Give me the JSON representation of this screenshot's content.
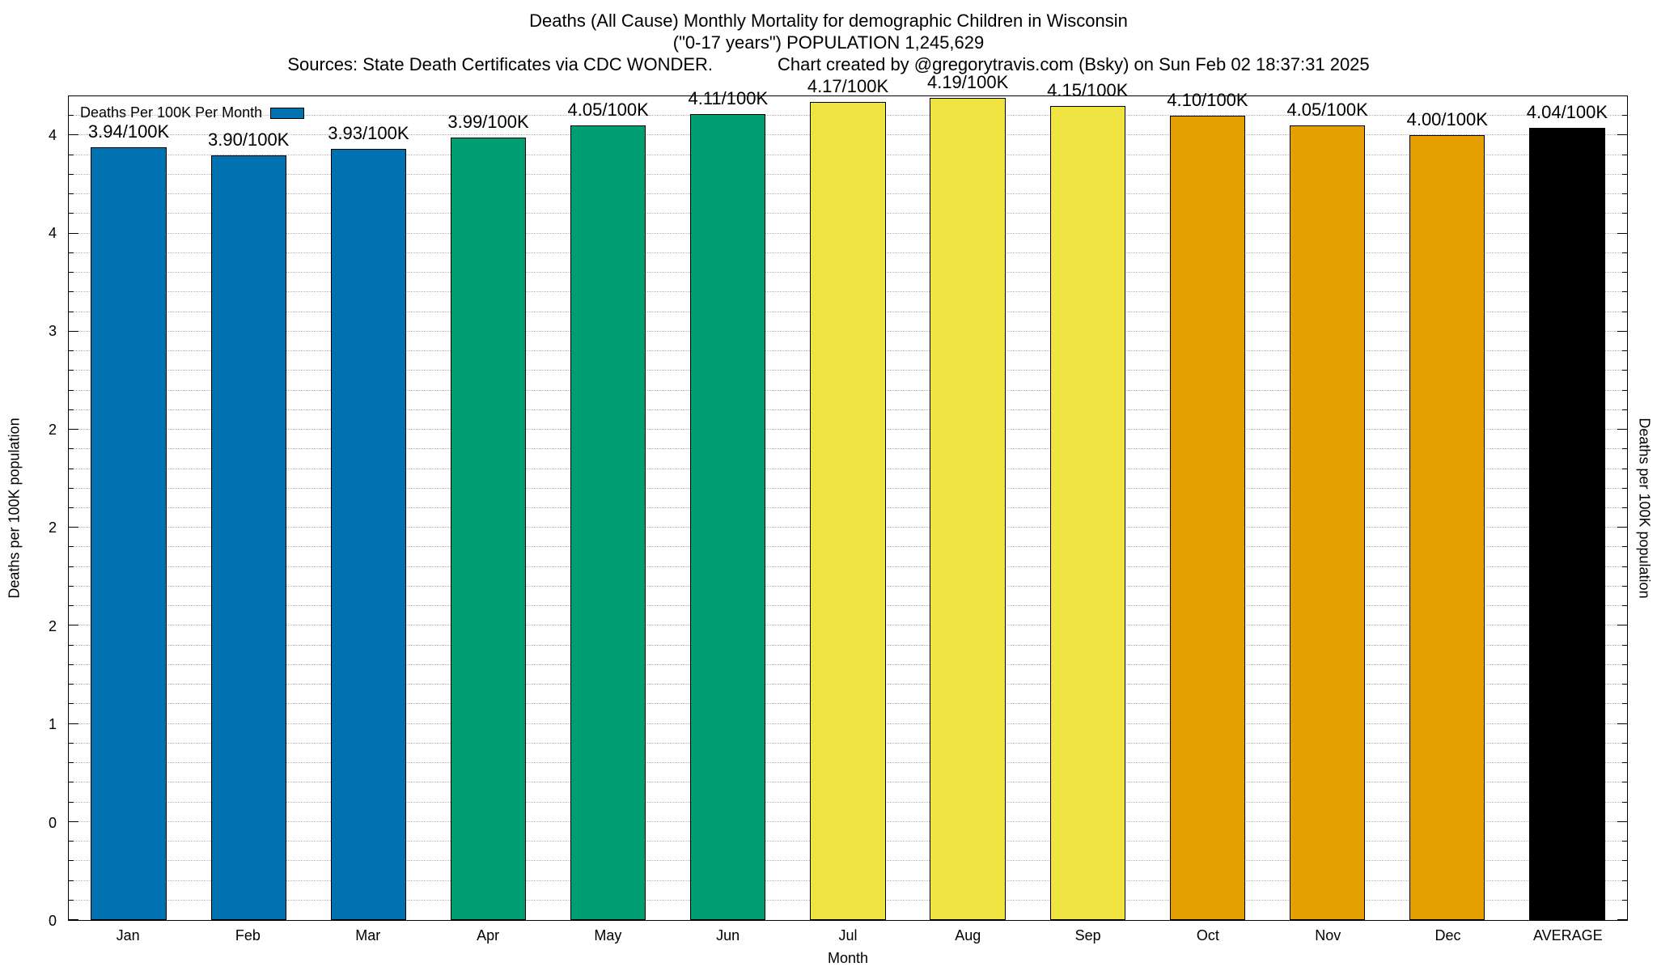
{
  "title": {
    "line1": "Deaths (All Cause) Monthly Mortality for demographic Children in Wisconsin",
    "line2": "(\"0-17 years\") POPULATION 1,245,629",
    "line3_left": "Sources: State Death Certificates via CDC WONDER.",
    "line3_right": "Chart created by @gregorytravis.com (Bsky) on Sun Feb 02 18:37:31 2025"
  },
  "legend": {
    "label": "Deaths Per 100K Per Month",
    "swatch_color": "#0072B2"
  },
  "axes": {
    "xlabel": "Month",
    "ylabel_left": "Deaths per 100K population",
    "ylabel_right": "Deaths per 100K population"
  },
  "chart_data": {
    "type": "bar",
    "title": "Deaths (All Cause) Monthly Mortality for demographic Children in Wisconsin (\"0-17 years\") POPULATION 1,245,629",
    "xlabel": "Month",
    "ylabel": "Deaths per 100K population",
    "categories": [
      "Jan",
      "Feb",
      "Mar",
      "Apr",
      "May",
      "Jun",
      "Jul",
      "Aug",
      "Sep",
      "Oct",
      "Nov",
      "Dec",
      "AVERAGE"
    ],
    "values": [
      3.94,
      3.9,
      3.93,
      3.99,
      4.05,
      4.11,
      4.17,
      4.19,
      4.15,
      4.1,
      4.05,
      4.0,
      4.04
    ],
    "bar_labels": [
      "3.94/100K",
      "3.90/100K",
      "3.93/100K",
      "3.99/100K",
      "4.05/100K",
      "4.11/100K",
      "4.17/100K",
      "4.19/100K",
      "4.15/100K",
      "4.10/100K",
      "4.05/100K",
      "4.00/100K",
      "4.04/100K"
    ],
    "bar_colors": [
      "#0072B2",
      "#0072B2",
      "#0072B2",
      "#009E73",
      "#009E73",
      "#009E73",
      "#F0E442",
      "#F0E442",
      "#F0E442",
      "#E69F00",
      "#E69F00",
      "#E69F00",
      "#000000"
    ],
    "ylim": [
      0,
      4.2
    ],
    "y_ticks": [
      {
        "value": 0,
        "label": "0"
      },
      {
        "value": 0.5,
        "label": "0"
      },
      {
        "value": 1,
        "label": "1"
      },
      {
        "value": 1.5,
        "label": "2"
      },
      {
        "value": 2,
        "label": "2"
      },
      {
        "value": 2.5,
        "label": "2"
      },
      {
        "value": 3,
        "label": "3"
      },
      {
        "value": 3.5,
        "label": "4"
      },
      {
        "value": 4,
        "label": "4"
      }
    ],
    "y_minor_tick_step": 0.1,
    "grid": true,
    "legend_position": "top-left"
  }
}
